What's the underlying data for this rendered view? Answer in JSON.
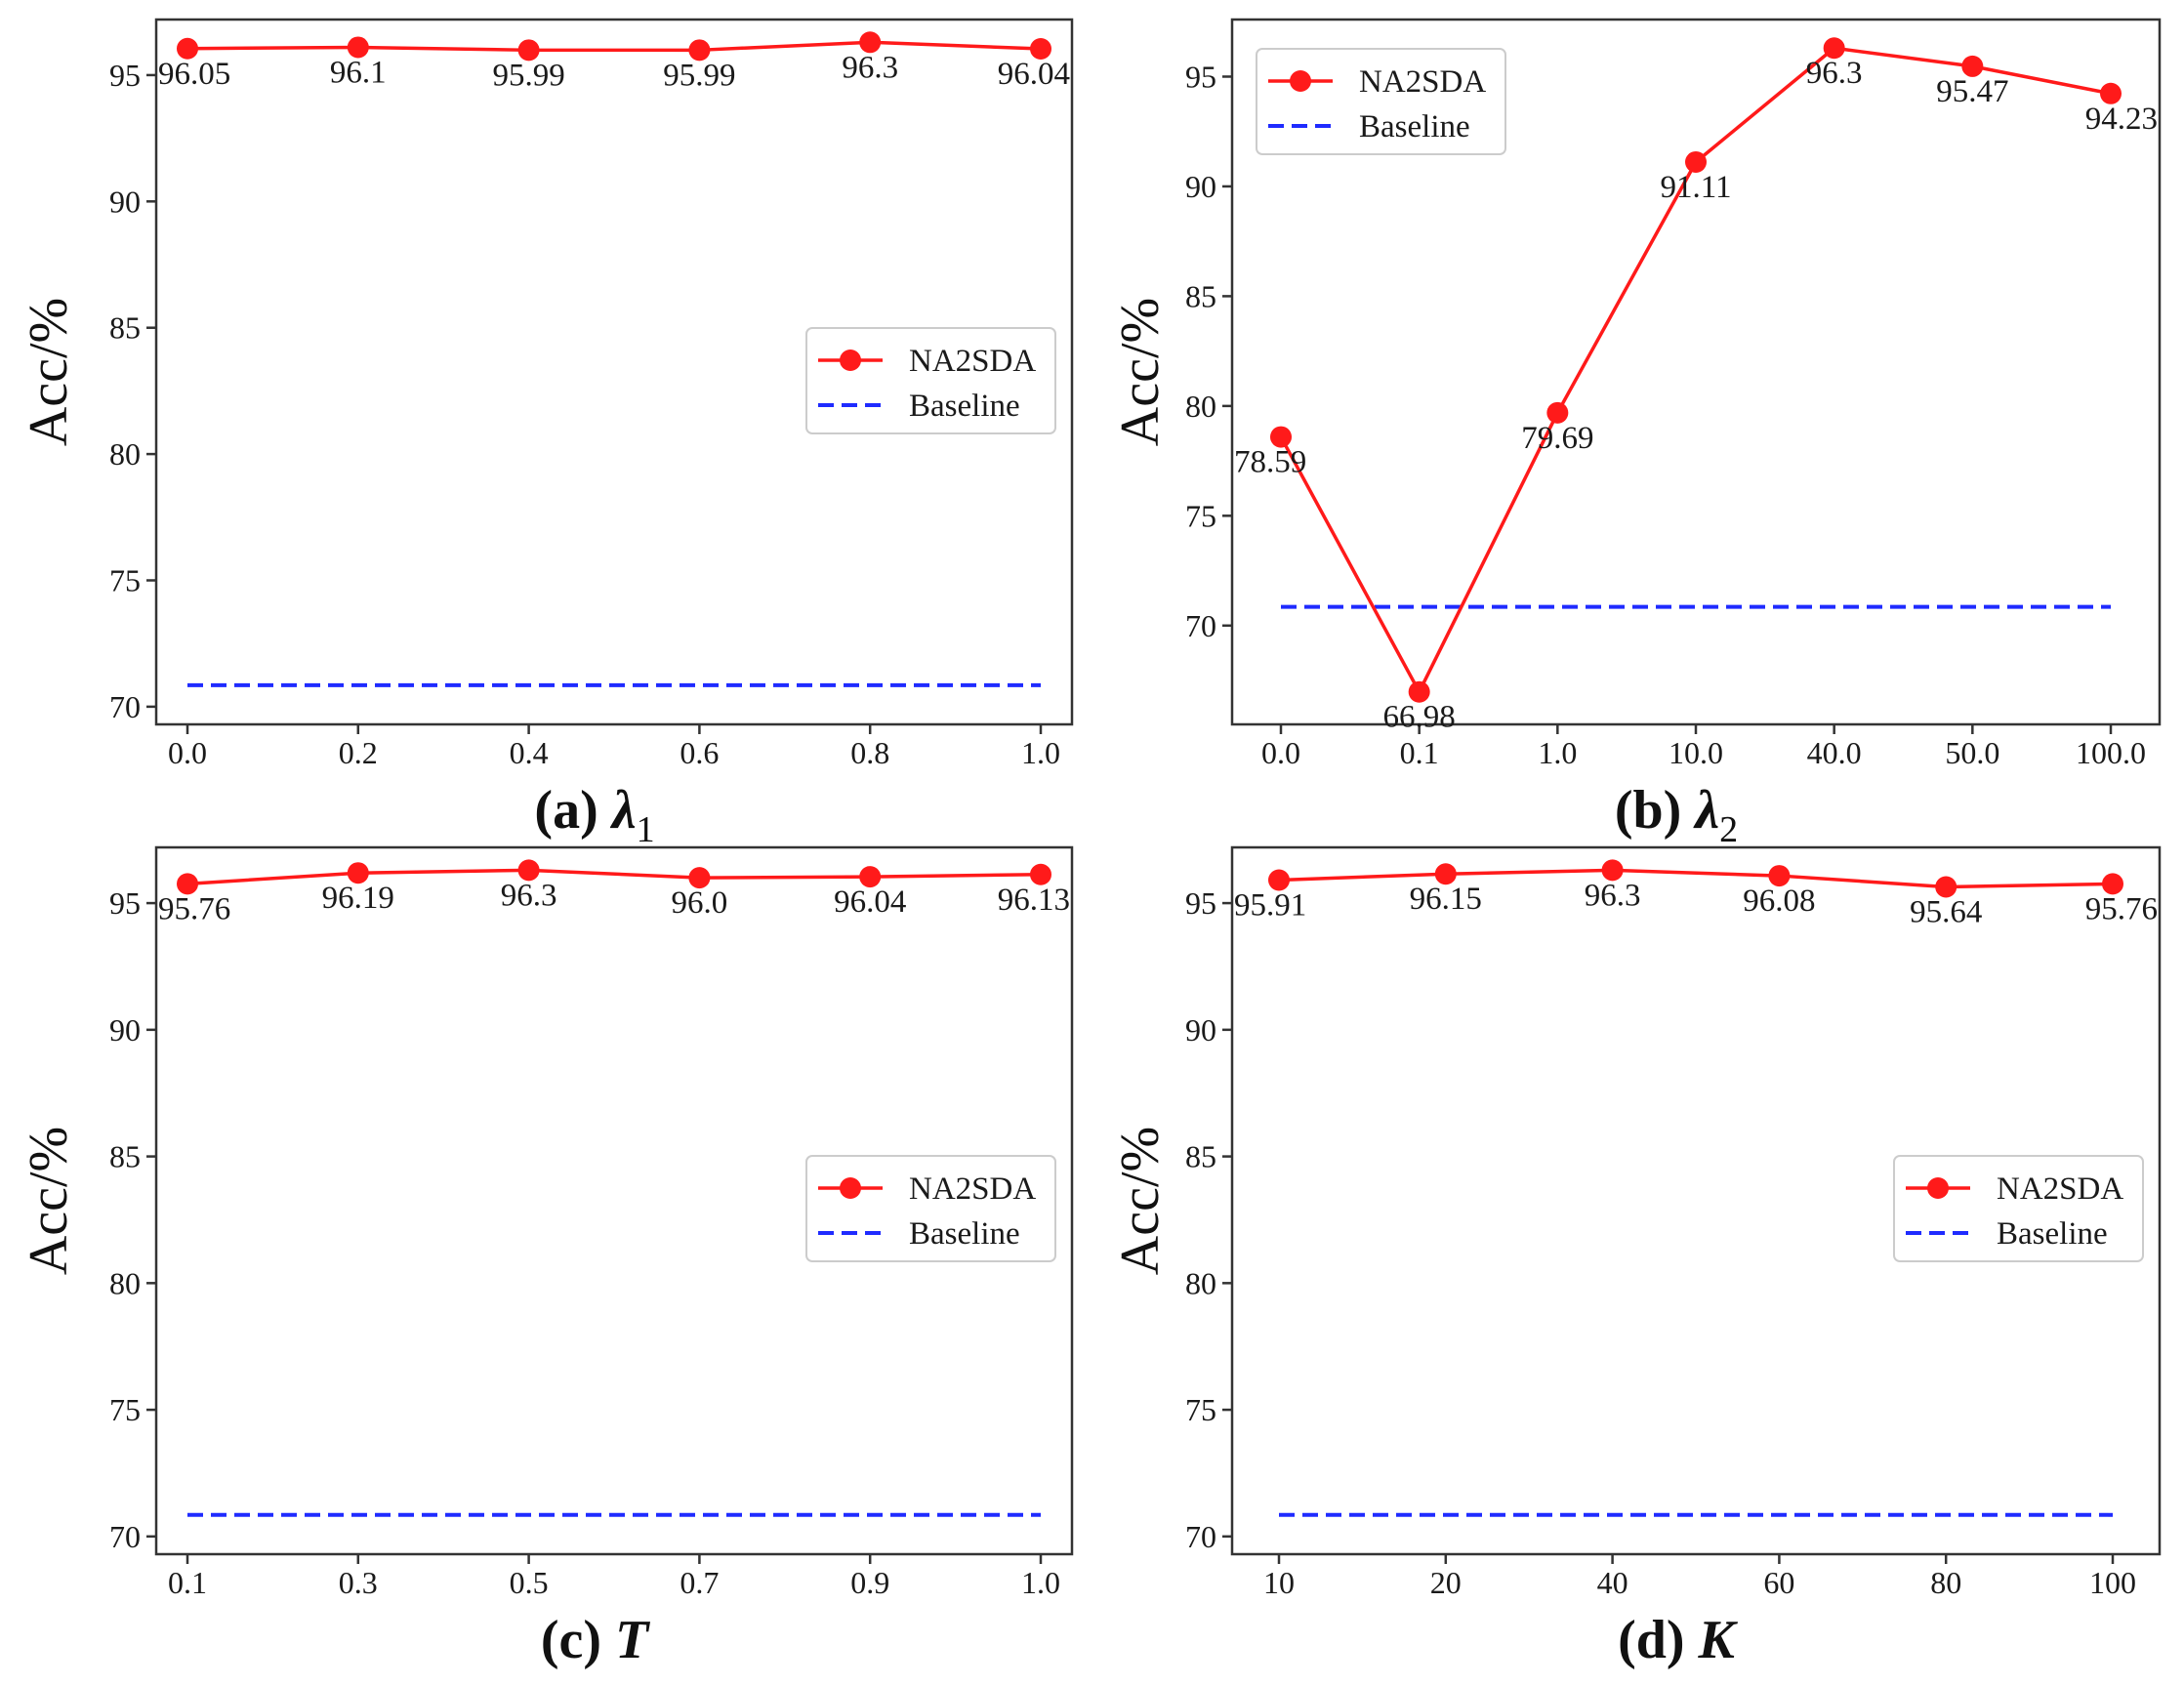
{
  "colors": {
    "na2sda": "#ff1a1a",
    "baseline": "#1f2bff",
    "axis": "#333333",
    "legend_border": "#cccccc"
  },
  "chart_data": [
    {
      "type": "line",
      "panel": "a",
      "caption_prefix": "(a)",
      "caption_symbol": "λ",
      "caption_subscript": "1",
      "ylabel": "Acc/%",
      "ylim": [
        69.3,
        97.2
      ],
      "yticks": [
        "70",
        "75",
        "80",
        "85",
        "90",
        "95"
      ],
      "categories": [
        "0.0",
        "0.2",
        "0.4",
        "0.6",
        "0.8",
        "1.0"
      ],
      "series": [
        {
          "name": "NA2SDA",
          "values": [
            96.05,
            96.1,
            95.99,
            95.99,
            96.3,
            96.04
          ],
          "labels": [
            "96.05",
            "96.1",
            "95.99",
            "95.99",
            "96.3",
            "96.04"
          ]
        },
        {
          "name": "Baseline",
          "constant": 70.85
        }
      ],
      "legend_items": [
        "NA2SDA",
        "Baseline"
      ],
      "legend": "center-right"
    },
    {
      "type": "line",
      "panel": "b",
      "caption_prefix": "(b)",
      "caption_symbol": "λ",
      "caption_subscript": "2",
      "ylabel": "Acc/%",
      "ylim": [
        65.5,
        97.6
      ],
      "yticks": [
        "70",
        "75",
        "80",
        "85",
        "90",
        "95"
      ],
      "categories": [
        "0.0",
        "0.1",
        "1.0",
        "10.0",
        "40.0",
        "50.0",
        "100.0"
      ],
      "series": [
        {
          "name": "NA2SDA",
          "values": [
            78.59,
            66.98,
            79.69,
            91.11,
            96.3,
            95.47,
            94.23
          ],
          "labels": [
            "78.59",
            "66.98",
            "79.69",
            "91.11",
            "96.3",
            "95.47",
            "94.23"
          ]
        },
        {
          "name": "Baseline",
          "constant": 70.85
        }
      ],
      "legend_items": [
        "NA2SDA",
        "Baseline"
      ],
      "legend": "top-left"
    },
    {
      "type": "line",
      "panel": "c",
      "caption_prefix": "(c)",
      "caption_symbol": "T",
      "caption_subscript": "",
      "ylabel": "Acc/%",
      "ylim": [
        69.3,
        97.2
      ],
      "yticks": [
        "70",
        "75",
        "80",
        "85",
        "90",
        "95"
      ],
      "categories": [
        "0.1",
        "0.3",
        "0.5",
        "0.7",
        "0.9",
        "1.0"
      ],
      "series": [
        {
          "name": "NA2SDA",
          "values": [
            95.76,
            96.19,
            96.3,
            96.0,
            96.04,
            96.13
          ],
          "labels": [
            "95.76",
            "96.19",
            "96.3",
            "96.0",
            "96.04",
            "96.13"
          ]
        },
        {
          "name": "Baseline",
          "constant": 70.85
        }
      ],
      "legend_items": [
        "NA2SDA",
        "Baseline"
      ],
      "legend": "center-right"
    },
    {
      "type": "line",
      "panel": "d",
      "caption_prefix": "(d)",
      "caption_symbol": "K",
      "caption_subscript": "",
      "ylabel": "Acc/%",
      "ylim": [
        69.3,
        97.2
      ],
      "yticks": [
        "70",
        "75",
        "80",
        "85",
        "90",
        "95"
      ],
      "categories": [
        "10",
        "20",
        "40",
        "60",
        "80",
        "100"
      ],
      "series": [
        {
          "name": "NA2SDA",
          "values": [
            95.91,
            96.15,
            96.3,
            96.08,
            95.64,
            95.76
          ],
          "labels": [
            "95.91",
            "96.15",
            "96.3",
            "96.08",
            "95.64",
            "95.76"
          ]
        },
        {
          "name": "Baseline",
          "constant": 70.85
        }
      ],
      "legend_items": [
        "NA2SDA",
        "Baseline"
      ],
      "legend": "center-right"
    }
  ]
}
